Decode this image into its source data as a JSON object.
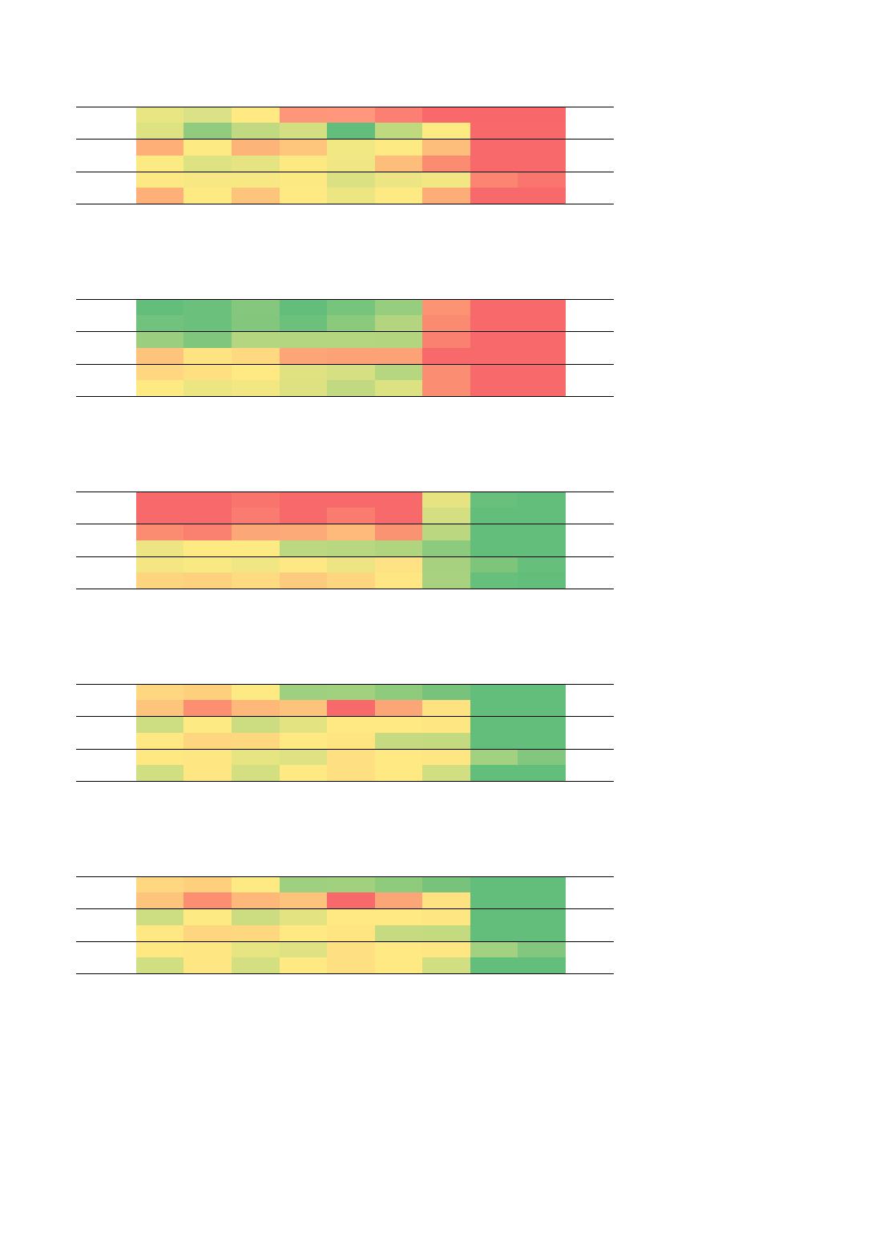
{
  "chart_data": [
    {
      "type": "heatmap",
      "rows": [
        [
          "#e8e583",
          "#dbe187",
          "#fee983",
          "#fe967a",
          "#fe977b",
          "#fc7f74",
          "#f9686b",
          "#f8686b",
          "#f8686b"
        ],
        [
          "#dde283",
          "#91cb7d",
          "#c1da81",
          "#d4df82",
          "#63be7b",
          "#bfd97f",
          "#feea83",
          "#f8696b",
          "#f8696b"
        ],
        [
          "#feaf78",
          "#feea83",
          "#fdb479",
          "#fdc67c",
          "#f1e783",
          "#feea83",
          "#fdbd7b",
          "#f8696b",
          "#f8696b"
        ],
        [
          "#feea83",
          "#dde283",
          "#e5e382",
          "#fde982",
          "#f0e683",
          "#fdbe7b",
          "#fb8c72",
          "#f8696b",
          "#f8696b"
        ],
        [
          "#fee883",
          "#f7e883",
          "#f7e883",
          "#fde982",
          "#dbe182",
          "#ede583",
          "#f3e783",
          "#fb8571",
          "#f9756e"
        ],
        [
          "#feb078",
          "#feea83",
          "#fdc47b",
          "#fee983",
          "#ebe582",
          "#feea83",
          "#fdae78",
          "#f8696b",
          "#f8696b"
        ]
      ]
    },
    {
      "type": "heatmap",
      "rows": [
        [
          "#63be7b",
          "#6bc17b",
          "#84c77d",
          "#63bd7b",
          "#77c47d",
          "#96cd7e",
          "#fc9473",
          "#f8696b",
          "#f8696b"
        ],
        [
          "#71c27c",
          "#6bc17b",
          "#82c77d",
          "#6bc17b",
          "#8bc97d",
          "#b4d57f",
          "#fa8b71",
          "#f8696b",
          "#f8696b"
        ],
        [
          "#9bce7f",
          "#80c67c",
          "#b5d680",
          "#b4d680",
          "#b5d680",
          "#b3d57f",
          "#fa8070",
          "#f8696b",
          "#f8696b"
        ],
        [
          "#fec47b",
          "#fee382",
          "#fed97f",
          "#fca677",
          "#fba377",
          "#fba377",
          "#f8696b",
          "#f8696b",
          "#f8696b"
        ],
        [
          "#fed780",
          "#fee081",
          "#fee983",
          "#e0e282",
          "#d6df82",
          "#b7d680",
          "#fb8e72",
          "#f8696b",
          "#f8696b"
        ],
        [
          "#feea83",
          "#ebe582",
          "#f2e783",
          "#dee182",
          "#c1d980",
          "#dce182",
          "#fb8e72",
          "#f8696b",
          "#f8696b"
        ]
      ]
    },
    {
      "type": "heatmap",
      "rows": [
        [
          "#f8696b",
          "#f8696b",
          "#f9746d",
          "#f8696b",
          "#f8696b",
          "#f8696b",
          "#e5e382",
          "#69c07c",
          "#63be7b"
        ],
        [
          "#f8696b",
          "#f8696b",
          "#fa7c70",
          "#f8696b",
          "#fa7c6f",
          "#f8696b",
          "#d4df82",
          "#63be7b",
          "#63be7b"
        ],
        [
          "#fb8c72",
          "#fa8070",
          "#fca777",
          "#fcaa77",
          "#fdba7a",
          "#fa9371",
          "#bbd780",
          "#63be7b",
          "#63be7b"
        ],
        [
          "#ede583",
          "#feea83",
          "#feea83",
          "#bcd881",
          "#b9d780",
          "#b1d47f",
          "#8ccb7e",
          "#63be7b",
          "#63be7b"
        ],
        [
          "#f4e783",
          "#f8e983",
          "#f0e683",
          "#fee883",
          "#ede583",
          "#fee283",
          "#a7d17f",
          "#7ec57c",
          "#67bf7c"
        ],
        [
          "#fed57f",
          "#fed17f",
          "#fedb80",
          "#fdcb7e",
          "#fed680",
          "#fee683",
          "#a8d27f",
          "#66bf7b",
          "#63be7b"
        ]
      ]
    },
    {
      "type": "heatmap",
      "rows": [
        [
          "#fed780",
          "#fed07e",
          "#feea83",
          "#9fd07f",
          "#a1d07e",
          "#8fcb7d",
          "#77c37b",
          "#63be7b",
          "#63be7b"
        ],
        [
          "#fdc47c",
          "#fc8f72",
          "#fdb87a",
          "#fdc27b",
          "#f8696b",
          "#fca577",
          "#fee181",
          "#63be7b",
          "#63be7b"
        ],
        [
          "#cddd82",
          "#feea83",
          "#cbdc81",
          "#e3e382",
          "#fee983",
          "#fee983",
          "#fee782",
          "#63be7b",
          "#63be7b"
        ],
        [
          "#fee883",
          "#fed680",
          "#fed87f",
          "#fee983",
          "#fee582",
          "#c6db81",
          "#c4da80",
          "#63be7b",
          "#63be7b"
        ],
        [
          "#fde882",
          "#fee783",
          "#e7e482",
          "#dfe282",
          "#fedf81",
          "#fee983",
          "#fee683",
          "#a2d17f",
          "#82c77d"
        ],
        [
          "#d1de81",
          "#fee683",
          "#d4df82",
          "#fee983",
          "#fee081",
          "#fee983",
          "#d1de82",
          "#63be7b",
          "#63be7b"
        ]
      ]
    },
    {
      "type": "heatmap",
      "rows": [
        [
          "#fed780",
          "#fed07e",
          "#feea83",
          "#9fd07f",
          "#a1d07e",
          "#8fcb7d",
          "#77c37b",
          "#63be7b",
          "#63be7b"
        ],
        [
          "#fdc47c",
          "#fc8f72",
          "#fdb87a",
          "#fdc27b",
          "#f8696b",
          "#fca577",
          "#fee181",
          "#63be7b",
          "#63be7b"
        ],
        [
          "#cddd82",
          "#feea83",
          "#cbdc81",
          "#e3e382",
          "#fee983",
          "#fee983",
          "#fee782",
          "#63be7b",
          "#63be7b"
        ],
        [
          "#fee883",
          "#fed680",
          "#fed87f",
          "#fee983",
          "#fee582",
          "#c6db81",
          "#c4da80",
          "#63be7b",
          "#63be7b"
        ],
        [
          "#fde882",
          "#fee783",
          "#e7e482",
          "#dfe282",
          "#fedf81",
          "#fee983",
          "#fee683",
          "#a2d17f",
          "#82c77d"
        ],
        [
          "#d1de81",
          "#fee683",
          "#d4df82",
          "#fee983",
          "#fee081",
          "#fee983",
          "#d1de82",
          "#63be7b",
          "#63be7b"
        ]
      ]
    }
  ]
}
